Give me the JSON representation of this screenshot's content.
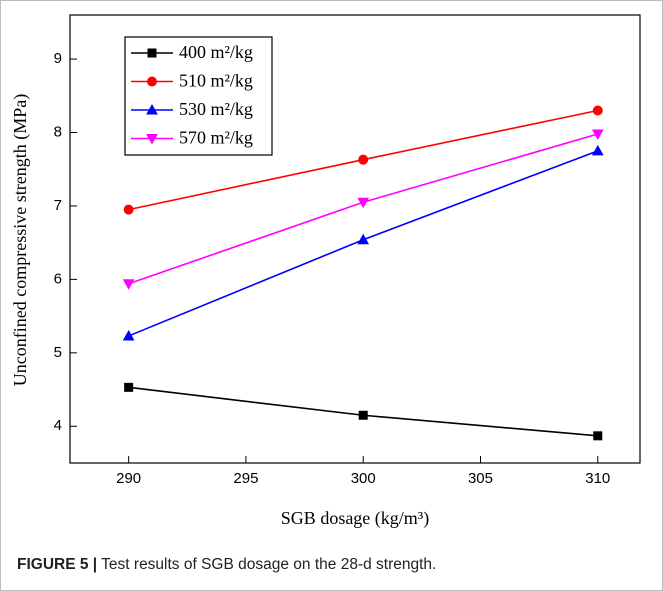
{
  "chart_data": {
    "type": "line",
    "x_label": "SGB dosage (kg/m³)",
    "y_label": "Unconfined compressive strength (MPa)",
    "x": [
      290,
      300,
      310
    ],
    "series": [
      {
        "name": "400 m²/kg",
        "color": "#000000",
        "marker": "square",
        "values": [
          4.53,
          4.15,
          3.87
        ]
      },
      {
        "name": "510 m²/kg",
        "color": "#ff0000",
        "marker": "circle",
        "values": [
          6.95,
          7.63,
          8.3
        ]
      },
      {
        "name": "530 m²/kg",
        "color": "#0000ff",
        "marker": "triangle-up",
        "values": [
          5.23,
          6.54,
          7.75
        ]
      },
      {
        "name": "570 m²/kg",
        "color": "#ff00ff",
        "marker": "triangle-down",
        "values": [
          5.94,
          7.05,
          7.98
        ]
      }
    ],
    "xlim": [
      287.5,
      311.8
    ],
    "xticks": [
      290,
      295,
      300,
      305,
      310
    ],
    "ylim": [
      3.5,
      9.6
    ],
    "yticks": [
      4,
      5,
      6,
      7,
      8,
      9
    ],
    "legend": "upper left",
    "grid": false
  },
  "caption": {
    "label": "FIGURE 5 |",
    "text": "Test results of SGB dosage on the 28-d strength."
  }
}
